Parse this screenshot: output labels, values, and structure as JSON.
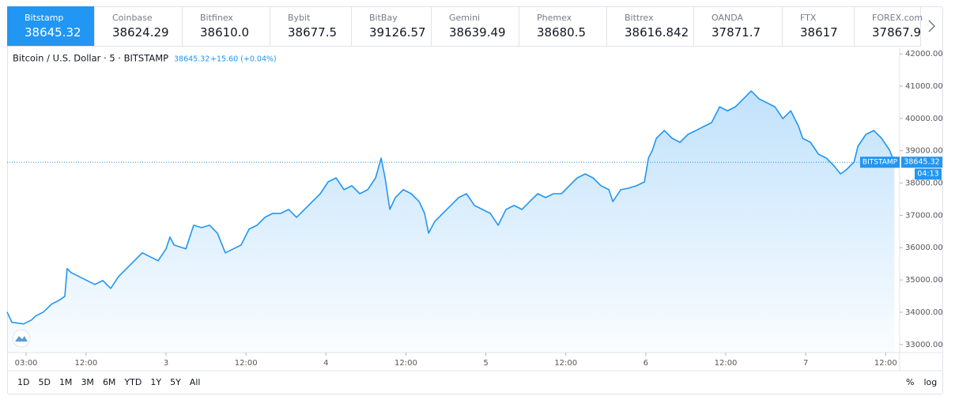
{
  "tabs": [
    {
      "name": "Bitstamp",
      "price": "38645.32"
    },
    {
      "name": "Coinbase",
      "price": "38624.29"
    },
    {
      "name": "Bitfinex",
      "price": "38610.0"
    },
    {
      "name": "Bybit",
      "price": "38677.5"
    },
    {
      "name": "BitBay",
      "price": "39126.57"
    },
    {
      "name": "Gemini",
      "price": "38639.49"
    },
    {
      "name": "Phemex",
      "price": "38680.5"
    },
    {
      "name": "Bittrex",
      "price": "38616.842"
    },
    {
      "name": "OANDA",
      "price": "37871.7"
    },
    {
      "name": "FTX",
      "price": "38617"
    },
    {
      "name": "FOREX.com",
      "price": "37867.9"
    }
  ],
  "chart_data": {
    "type": "line",
    "title": "Bitcoin / U.S. Dollar · 5 · BITSTAMP",
    "last_value": 38645.32,
    "change": "+15.60 (+0.04%)",
    "exchange_label": "BITSTAMP",
    "countdown": "04:13",
    "color": "#2196f3",
    "x": [
      0.15,
      0.86,
      2.64,
      3.82,
      4.42,
      5.6,
      6.79,
      7.98,
      8.81,
      9.16,
      9.76,
      10.95,
      12.13,
      13.32,
      14.51,
      15.69,
      16.88,
      18.07,
      19.25,
      20.44,
      21.63,
      22.81,
      24,
      24.59,
      25.19,
      26.97,
      28.15,
      29.34,
      30.53,
      31.71,
      32.9,
      34.09,
      35.27,
      36.46,
      37.65,
      38.84,
      40.02,
      41.21,
      42.4,
      43.58,
      44.77,
      45.96,
      47.14,
      48.33,
      49.52,
      50.7,
      51.89,
      53.08,
      54.26,
      55.45,
      56.28,
      56.87,
      57.59,
      58.42,
      59.6,
      60.79,
      61.98,
      62.81,
      63.4,
      64.35,
      65.54,
      66.73,
      67.91,
      69.1,
      70.29,
      71.47,
      72.66,
      73.85,
      75.03,
      76.22,
      77.41,
      78.59,
      79.78,
      80.97,
      82.15,
      83.34,
      84.53,
      85.71,
      86.9,
      88.09,
      89.27,
      90.46,
      91.05,
      92.24,
      93.43,
      94.61,
      95.8,
      96.39,
      96.99,
      97.58,
      98.77,
      99.96,
      101.14,
      102.33,
      103.52,
      104.7,
      105.89,
      107.08,
      108.26,
      109.45,
      110.64,
      111.82,
      113.01,
      114.2,
      115.38,
      116.57,
      117.76,
      118.94,
      119.54,
      120.72,
      121.91,
      123.1,
      124.28,
      125.23,
      126.06,
      127.25,
      127.84,
      129.03,
      130.22,
      131.4,
      132.59,
      133.3
    ],
    "values": [
      34005,
      33687,
      33638,
      33760,
      33883,
      34005,
      34249,
      34372,
      34494,
      35350,
      35227,
      35105,
      34983,
      34861,
      34983,
      34738,
      35105,
      35350,
      35594,
      35839,
      35716,
      35594,
      35961,
      36328,
      36083,
      35961,
      36694,
      36621,
      36694,
      36450,
      35839,
      35961,
      36083,
      36572,
      36694,
      36939,
      37061,
      37061,
      37183,
      36939,
      37183,
      37428,
      37672,
      38039,
      38161,
      37795,
      37917,
      37672,
      37795,
      38161,
      38773,
      38161,
      37183,
      37550,
      37795,
      37672,
      37428,
      37061,
      36450,
      36817,
      37061,
      37306,
      37550,
      37672,
      37306,
      37183,
      37061,
      36694,
      37183,
      37306,
      37183,
      37428,
      37672,
      37550,
      37672,
      37672,
      37917,
      38161,
      38284,
      38161,
      37917,
      37795,
      37428,
      37795,
      37843,
      37917,
      38039,
      38773,
      39017,
      39384,
      39628,
      39384,
      39262,
      39506,
      39628,
      39751,
      39873,
      40362,
      40240,
      40362,
      40606,
      40851,
      40606,
      40484,
      40362,
      39995,
      40240,
      39751,
      39384,
      39262,
      38895,
      38773,
      38528,
      38284,
      38406,
      38650,
      39139,
      39506,
      39628,
      39384,
      39017,
      38645
    ],
    "xlim": [
      0.15,
      134.1
    ],
    "xticks": [
      {
        "value": 3,
        "label": "03:00"
      },
      {
        "value": 12,
        "label": "12:00"
      },
      {
        "value": 24,
        "label": "3"
      },
      {
        "value": 36,
        "label": "12:00"
      },
      {
        "value": 48,
        "label": "4"
      },
      {
        "value": 60,
        "label": "12:00"
      },
      {
        "value": 72,
        "label": "5"
      },
      {
        "value": 84,
        "label": "12:00"
      },
      {
        "value": 96,
        "label": "6"
      },
      {
        "value": 108,
        "label": "12:00"
      },
      {
        "value": 120,
        "label": "7"
      },
      {
        "value": 132,
        "label": "12:00"
      }
    ],
    "ylim": [
      32750,
      42200
    ],
    "yticks": [
      {
        "value": 33000,
        "label": "33000.00"
      },
      {
        "value": 34000,
        "label": "34000.00"
      },
      {
        "value": 35000,
        "label": "35000.00"
      },
      {
        "value": 36000,
        "label": "36000.00"
      },
      {
        "value": 37000,
        "label": "37000.00"
      },
      {
        "value": 38000,
        "label": "38000.00"
      },
      {
        "value": 39000,
        "label": "39000.00"
      },
      {
        "value": 40000,
        "label": "40000.00"
      },
      {
        "value": 41000,
        "label": "41000.00"
      },
      {
        "value": 42000,
        "label": "42000.00"
      }
    ]
  },
  "toolbar": {
    "ranges": [
      "1D",
      "5D",
      "1M",
      "3M",
      "6M",
      "YTD",
      "1Y",
      "5Y",
      "All"
    ],
    "percent": "%",
    "log": "log"
  }
}
